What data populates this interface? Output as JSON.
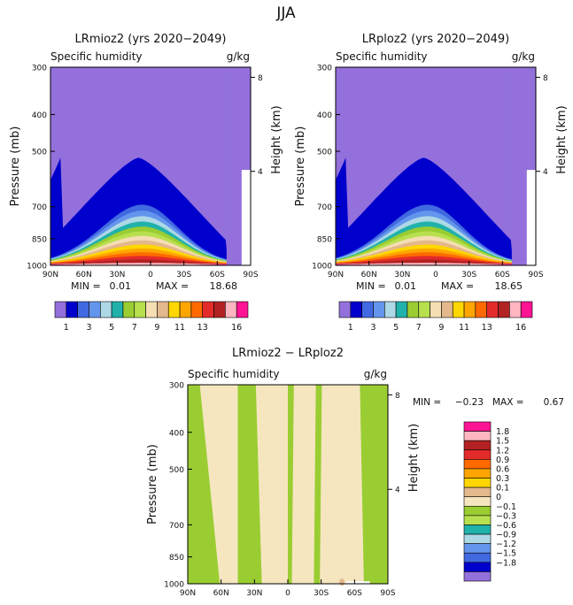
{
  "figure_title": "JJA",
  "colors": {
    "abs_palette": [
      "#9370db",
      "#0000cd",
      "#4169e1",
      "#6495ed",
      "#add8e6",
      "#20b2aa",
      "#9acd32",
      "#b8e04e",
      "#f5deb3",
      "#e3b88c",
      "#ffd700",
      "#ffa500",
      "#ff6a00",
      "#e32b2b",
      "#b22222",
      "#ffb6c1",
      "#ff1493"
    ],
    "diff_palette": [
      "#9370db",
      "#0000cd",
      "#4169e1",
      "#6495ed",
      "#add8e6",
      "#20b2aa",
      "#b8e04e",
      "#9acd32",
      "#f5e6c0",
      "#e3b88c",
      "#ffd700",
      "#ffa500",
      "#ff6a00",
      "#e32b2b",
      "#b22222",
      "#ffb6c1",
      "#ff1493"
    ]
  },
  "chart_data": [
    {
      "type": "contour",
      "title": "LRmioz2 (yrs 2020−2049)",
      "subtitle_left": "Specific humidity",
      "subtitle_right": "g/kg",
      "ylabel": "Pressure (mb)",
      "y2label": "Height (km)",
      "x_ticks": [
        "90N",
        "60N",
        "30N",
        "0",
        "30S",
        "60S",
        "90S"
      ],
      "y_ticks": [
        "300",
        "400",
        "500",
        "700",
        "850",
        "1000"
      ],
      "y_tick_values": [
        300,
        400,
        500,
        700,
        850,
        1000
      ],
      "y2_ticks": [
        "8",
        "4"
      ],
      "y2_tick_values": [
        8,
        4
      ],
      "min_label": "MIN =",
      "min_value": "0.01",
      "max_label": "MAX =",
      "max_value": "18.68",
      "levels": [
        1,
        2,
        3,
        4,
        5,
        6,
        7,
        8,
        9,
        10,
        11,
        12,
        13,
        14,
        15,
        16
      ],
      "colorbar_labels": [
        "1",
        "3",
        "5",
        "7",
        "9",
        "11",
        "13",
        "16"
      ],
      "profile_note": "moisture concentrated near equator at low levels, decreasing poleward and upward"
    },
    {
      "type": "contour",
      "title": "LRploz2 (yrs 2020−2049)",
      "subtitle_left": "Specific humidity",
      "subtitle_right": "g/kg",
      "ylabel": "Pressure (mb)",
      "y2label": "Height (km)",
      "x_ticks": [
        "90N",
        "60N",
        "30N",
        "0",
        "30S",
        "60S",
        "90S"
      ],
      "y_ticks": [
        "300",
        "400",
        "500",
        "700",
        "850",
        "1000"
      ],
      "y_tick_values": [
        300,
        400,
        500,
        700,
        850,
        1000
      ],
      "y2_ticks": [
        "8",
        "4"
      ],
      "y2_tick_values": [
        8,
        4
      ],
      "min_label": "MIN =",
      "min_value": "0.01",
      "max_label": "MAX =",
      "max_value": "18.65",
      "levels": [
        1,
        2,
        3,
        4,
        5,
        6,
        7,
        8,
        9,
        10,
        11,
        12,
        13,
        14,
        15,
        16
      ],
      "colorbar_labels": [
        "1",
        "3",
        "5",
        "7",
        "9",
        "11",
        "13",
        "16"
      ]
    },
    {
      "type": "contour-difference",
      "title": "LRmioz2 − LRploz2",
      "subtitle_left": "Specific humidity",
      "subtitle_right": "g/kg",
      "ylabel": "Pressure (mb)",
      "y2label": "Height (km)",
      "x_ticks": [
        "90N",
        "60N",
        "30N",
        "0",
        "30S",
        "60S",
        "90S"
      ],
      "y_ticks": [
        "300",
        "400",
        "500",
        "700",
        "850",
        "1000"
      ],
      "y_tick_values": [
        300,
        400,
        500,
        700,
        850,
        1000
      ],
      "y2_ticks": [
        "8",
        "4"
      ],
      "y2_tick_values": [
        8,
        4
      ],
      "min_label": "MIN =",
      "min_value": "−0.23",
      "max_label": "MAX =",
      "max_value": "0.67",
      "levels": [
        -1.8,
        -1.5,
        -1.2,
        -0.9,
        -0.6,
        -0.3,
        -0.1,
        0,
        0.1,
        0.3,
        0.6,
        0.9,
        1.2,
        1.5,
        1.8
      ],
      "colorbar_labels": [
        "1.8",
        "1.5",
        "1.2",
        "0.9",
        "0.6",
        "0.3",
        "0.1",
        "0",
        "−0.1",
        "−0.3",
        "−0.6",
        "−0.9",
        "−1.2",
        "−1.5",
        "−1.8"
      ]
    }
  ]
}
